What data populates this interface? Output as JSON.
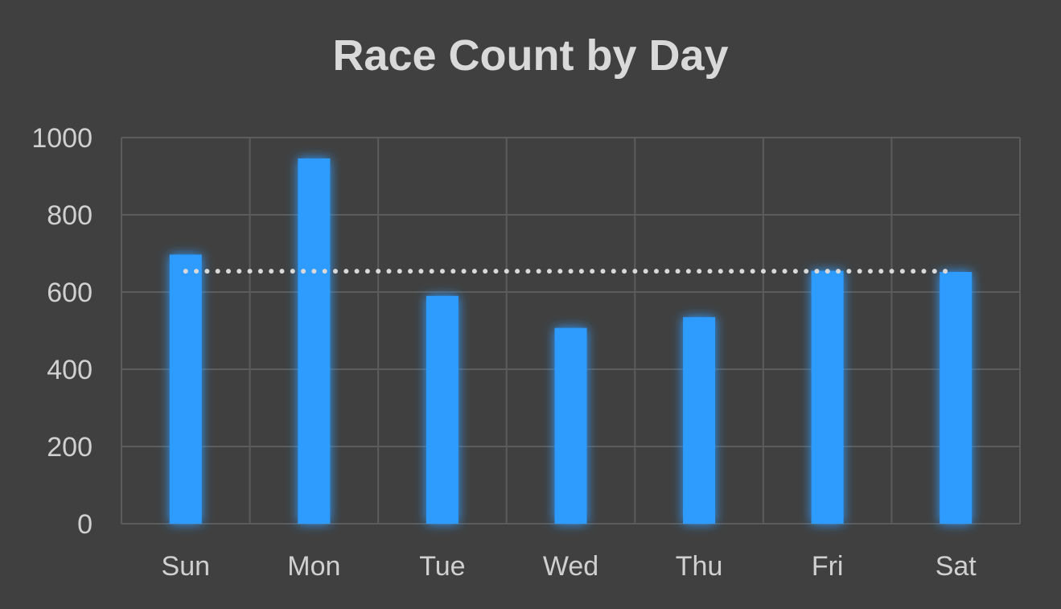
{
  "chart_data": {
    "type": "bar",
    "title": "Race Count by Day",
    "xlabel": "",
    "ylabel": "",
    "categories": [
      "Sun",
      "Mon",
      "Tue",
      "Wed",
      "Thu",
      "Fri",
      "Sat"
    ],
    "values": [
      697,
      946,
      590,
      507,
      535,
      655,
      652
    ],
    "average_line": 654,
    "ylim": [
      0,
      1000
    ],
    "yticks": [
      "0",
      "200",
      "400",
      "600",
      "800",
      "1000"
    ],
    "grid": true,
    "legend": "none",
    "colors": {
      "bar": "#2e9bff",
      "background": "#404040",
      "grid": "#5c5c5c",
      "text": "#d0d0d0",
      "average_line": "#d9d9d9"
    }
  }
}
